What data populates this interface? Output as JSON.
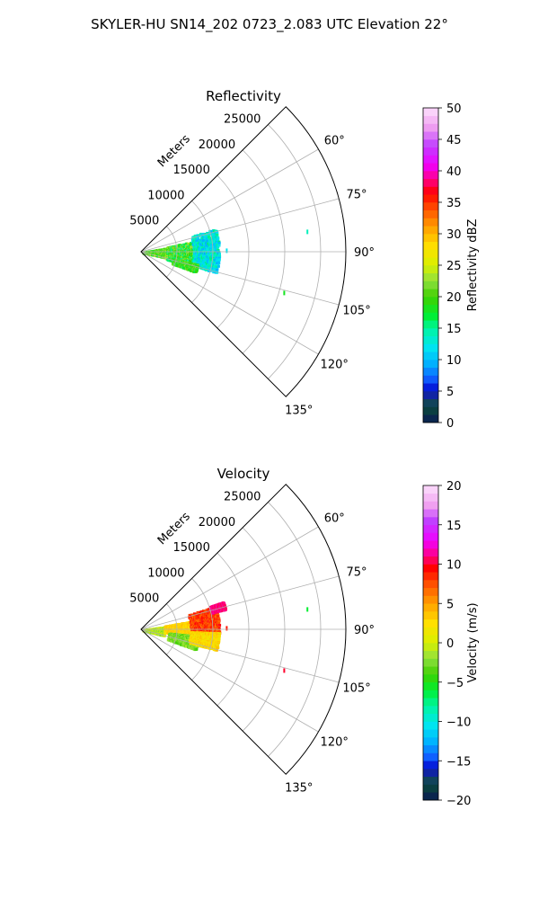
{
  "figure_title": "SKYLER-HU  SN14_202  0723_2.083 UTC Elevation 22°",
  "colors": {
    "grid": "#b0b0b0",
    "frame": "#000000"
  },
  "chart_data": [
    {
      "type": "polar-sector",
      "title": "Reflectivity",
      "radial_label": "Meters",
      "radial_ticks": [
        5000,
        10000,
        15000,
        20000,
        25000
      ],
      "radial_tick_labels": [
        "5000",
        "10000",
        "15000",
        "20000",
        "25000"
      ],
      "rmax": 28500,
      "theta_range_deg": [
        45,
        135
      ],
      "theta_ticks_deg": [
        60,
        75,
        90,
        105,
        120,
        135
      ],
      "theta_tick_labels": [
        "60°",
        "75°",
        "90°",
        "105°",
        "120°",
        "135°"
      ],
      "colorbar": {
        "label": "Reflectivity dBZ",
        "range": [
          0,
          50
        ],
        "ticks": [
          0,
          5,
          10,
          15,
          20,
          25,
          30,
          35,
          40,
          45,
          50
        ],
        "tick_labels": [
          "0",
          "5",
          "10",
          "15",
          "20",
          "25",
          "30",
          "35",
          "40",
          "45",
          "50"
        ],
        "stops": [
          {
            "v": 0,
            "c": "#0a1a55"
          },
          {
            "v": 2.5,
            "c": "#0a4a3a"
          },
          {
            "v": 4,
            "c": "#1a3a8a"
          },
          {
            "v": 5,
            "c": "#0000cc"
          },
          {
            "v": 7,
            "c": "#1060ff"
          },
          {
            "v": 9.5,
            "c": "#00b4ff"
          },
          {
            "v": 12,
            "c": "#00e5f0"
          },
          {
            "v": 15,
            "c": "#00f5a0"
          },
          {
            "v": 17,
            "c": "#00ee30"
          },
          {
            "v": 20,
            "c": "#40d000"
          },
          {
            "v": 22.5,
            "c": "#90e040"
          },
          {
            "v": 25,
            "c": "#d8f000"
          },
          {
            "v": 28,
            "c": "#ffe000"
          },
          {
            "v": 31,
            "c": "#ffa000"
          },
          {
            "v": 34,
            "c": "#ff5000"
          },
          {
            "v": 36.5,
            "c": "#ff0000"
          },
          {
            "v": 38.5,
            "c": "#ff0080"
          },
          {
            "v": 41,
            "c": "#f000ff"
          },
          {
            "v": 44,
            "c": "#c040ff"
          },
          {
            "v": 47,
            "c": "#f0a0f0"
          },
          {
            "v": 50,
            "c": "#fde0fd"
          }
        ]
      },
      "echo_clusters": [
        {
          "r_range": [
            200,
            3500
          ],
          "theta_range": [
            80,
            102
          ],
          "value_range": [
            17,
            24
          ]
        },
        {
          "r_range": [
            3500,
            7500
          ],
          "theta_range": [
            78,
            106
          ],
          "value_range": [
            14,
            24
          ]
        },
        {
          "r_range": [
            7200,
            10800
          ],
          "theta_range": [
            72,
            105
          ],
          "value_range": [
            9,
            16
          ]
        },
        {
          "r_range": [
            4500,
            8000
          ],
          "theta_range": [
            102,
            110
          ],
          "value_range": [
            16,
            23
          ]
        }
      ],
      "isolated_returns": [
        {
          "r": 11800,
          "theta": 89,
          "value": 12
        },
        {
          "r": 23200,
          "theta": 83,
          "value": 14
        },
        {
          "r": 20600,
          "theta": 106,
          "value": 18
        }
      ]
    },
    {
      "type": "polar-sector",
      "title": "Velocity",
      "radial_label": "Meters",
      "radial_ticks": [
        5000,
        10000,
        15000,
        20000,
        25000
      ],
      "radial_tick_labels": [
        "5000",
        "10000",
        "15000",
        "20000",
        "25000"
      ],
      "rmax": 28500,
      "theta_range_deg": [
        45,
        135
      ],
      "theta_ticks_deg": [
        60,
        75,
        90,
        105,
        120,
        135
      ],
      "theta_tick_labels": [
        "60°",
        "75°",
        "90°",
        "105°",
        "120°",
        "135°"
      ],
      "colorbar": {
        "label": "Velocity (m/s)",
        "range": [
          -20,
          20
        ],
        "ticks": [
          -20,
          -15,
          -10,
          -5,
          0,
          5,
          10,
          15,
          20
        ],
        "tick_labels": [
          "−20",
          "−15",
          "−10",
          "−5",
          "0",
          "5",
          "10",
          "15",
          "20"
        ],
        "stops": [
          {
            "v": -20,
            "c": "#0a1a55"
          },
          {
            "v": -18,
            "c": "#0a4a3a"
          },
          {
            "v": -16.8,
            "c": "#1a3a8a"
          },
          {
            "v": -16,
            "c": "#0000cc"
          },
          {
            "v": -14.5,
            "c": "#1060ff"
          },
          {
            "v": -12.5,
            "c": "#00b4ff"
          },
          {
            "v": -10.5,
            "c": "#00e5f0"
          },
          {
            "v": -8,
            "c": "#00f5a0"
          },
          {
            "v": -6,
            "c": "#00ee30"
          },
          {
            "v": -4,
            "c": "#40d000"
          },
          {
            "v": -2,
            "c": "#90e040"
          },
          {
            "v": 0,
            "c": "#d8f000"
          },
          {
            "v": 2.5,
            "c": "#ffe000"
          },
          {
            "v": 5,
            "c": "#ffa000"
          },
          {
            "v": 7.5,
            "c": "#ff5000"
          },
          {
            "v": 9.5,
            "c": "#ff0000"
          },
          {
            "v": 11,
            "c": "#ff0080"
          },
          {
            "v": 13,
            "c": "#f000ff"
          },
          {
            "v": 15.5,
            "c": "#c040ff"
          },
          {
            "v": 17.5,
            "c": "#f0a0f0"
          },
          {
            "v": 20,
            "c": "#fde0fd"
          }
        ]
      },
      "echo_clusters": [
        {
          "r_range": [
            200,
            3200
          ],
          "theta_range": [
            82,
            104
          ],
          "value_range": [
            -3,
            1
          ]
        },
        {
          "r_range": [
            3200,
            7200
          ],
          "theta_range": [
            80,
            96
          ],
          "value_range": [
            2,
            4
          ]
        },
        {
          "r_range": [
            3800,
            8000
          ],
          "theta_range": [
            96,
            110
          ],
          "value_range": [
            -4,
            -1
          ]
        },
        {
          "r_range": [
            6800,
            10800
          ],
          "theta_range": [
            72,
            92
          ],
          "value_range": [
            6,
            10
          ]
        },
        {
          "r_range": [
            6800,
            10800
          ],
          "theta_range": [
            92,
            105
          ],
          "value_range": [
            1,
            4
          ]
        },
        {
          "r_range": [
            10000,
            12000
          ],
          "theta_range": [
            71,
            76
          ],
          "value_range": [
            10,
            12
          ]
        }
      ],
      "isolated_returns": [
        {
          "r": 11800,
          "theta": 89,
          "value": 9
        },
        {
          "r": 23200,
          "theta": 83,
          "value": -6
        },
        {
          "r": 20600,
          "theta": 106,
          "value": 10
        }
      ]
    }
  ]
}
